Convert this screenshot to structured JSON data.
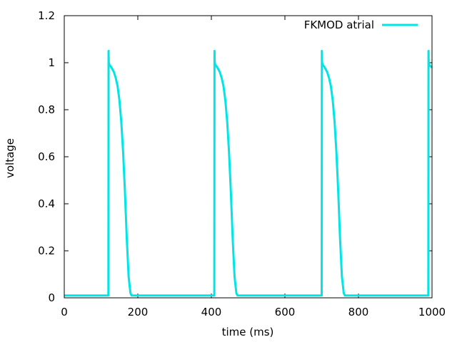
{
  "chart_data": {
    "type": "line",
    "title": "",
    "xlabel": "time (ms)",
    "ylabel": "voltage",
    "xlim": [
      0,
      1000
    ],
    "ylim": [
      0,
      1.2
    ],
    "xticks": [
      0,
      200,
      400,
      600,
      800,
      1000
    ],
    "xtick_labels": [
      "0",
      "200",
      "400",
      "600",
      "800",
      "1000"
    ],
    "yticks": [
      0,
      0.2,
      0.4,
      0.6,
      0.8,
      1.0,
      1.2
    ],
    "ytick_labels": [
      "0",
      "0.2",
      "0.4",
      "0.6",
      "0.8",
      "1",
      "1.2"
    ],
    "grid": false,
    "legend_position": "top-right",
    "series": [
      {
        "name": "FKMOD atrial",
        "color": "#00e5e5",
        "x": [
          0,
          120,
          120.5,
          121,
          123,
          126,
          130,
          135,
          140,
          145,
          150,
          155,
          160,
          165,
          170,
          175,
          180,
          183,
          184,
          408,
          408.5,
          409,
          411,
          414,
          418,
          423,
          428,
          433,
          438,
          443,
          448,
          453,
          458,
          463,
          468,
          471,
          472,
          700,
          700.5,
          701,
          703,
          706,
          710,
          715,
          720,
          725,
          730,
          735,
          740,
          745,
          750,
          755,
          760,
          763,
          764,
          990,
          990.5,
          991,
          993,
          996,
          1000
        ],
        "y": [
          0.01,
          0.01,
          1.05,
          1.0,
          0.99,
          0.985,
          0.975,
          0.96,
          0.935,
          0.9,
          0.84,
          0.75,
          0.62,
          0.45,
          0.25,
          0.09,
          0.02,
          0.01,
          0.01,
          0.01,
          1.05,
          1.0,
          0.99,
          0.985,
          0.975,
          0.96,
          0.935,
          0.9,
          0.84,
          0.75,
          0.62,
          0.45,
          0.25,
          0.09,
          0.02,
          0.01,
          0.01,
          0.01,
          1.05,
          1.0,
          0.99,
          0.985,
          0.975,
          0.96,
          0.935,
          0.9,
          0.84,
          0.75,
          0.62,
          0.45,
          0.25,
          0.09,
          0.02,
          0.01,
          0.01,
          0.01,
          1.05,
          1.0,
          0.99,
          0.985,
          0.98
        ]
      }
    ]
  }
}
